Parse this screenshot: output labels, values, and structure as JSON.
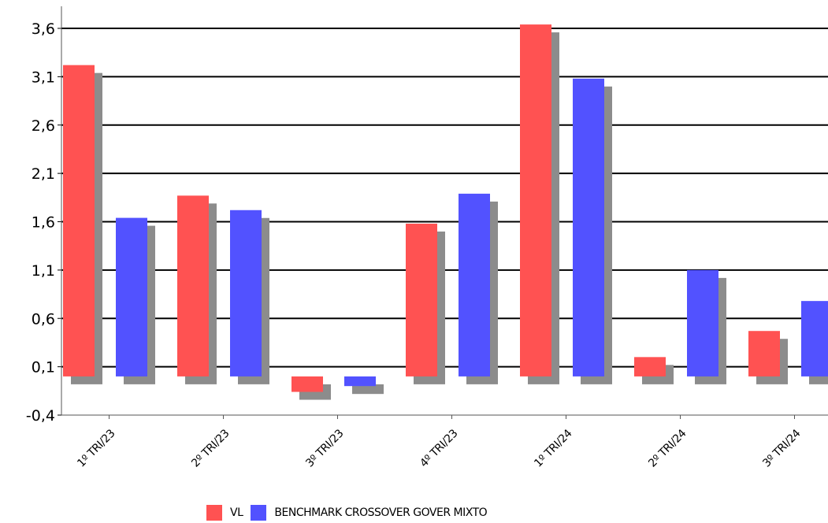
{
  "chart_data": {
    "type": "bar",
    "categories": [
      "1º TRI/23",
      "2º TRI/23",
      "3º TRI/23",
      "4º TRI/23",
      "1º TRI/24",
      "2º TRI/24",
      "3º TRI/24"
    ],
    "series": [
      {
        "name": "VL",
        "color": "#ff5252",
        "values": [
          3.22,
          1.87,
          -0.16,
          1.58,
          3.64,
          0.2,
          0.47
        ]
      },
      {
        "name": "BENCHMARK CROSSOVER GOVER MIXTO",
        "color": "#5252ff",
        "values": [
          1.64,
          1.72,
          -0.1,
          1.89,
          3.08,
          1.1,
          0.78
        ]
      }
    ],
    "y_ticks": [
      "-0,4",
      "0,1",
      "0,6",
      "1,1",
      "1,6",
      "2,1",
      "2,6",
      "3,1",
      "3,6"
    ],
    "ylim": [
      -0.4,
      3.6
    ],
    "grid": true,
    "legend_position": "bottom",
    "shadow_color": "#8c8c8c"
  }
}
